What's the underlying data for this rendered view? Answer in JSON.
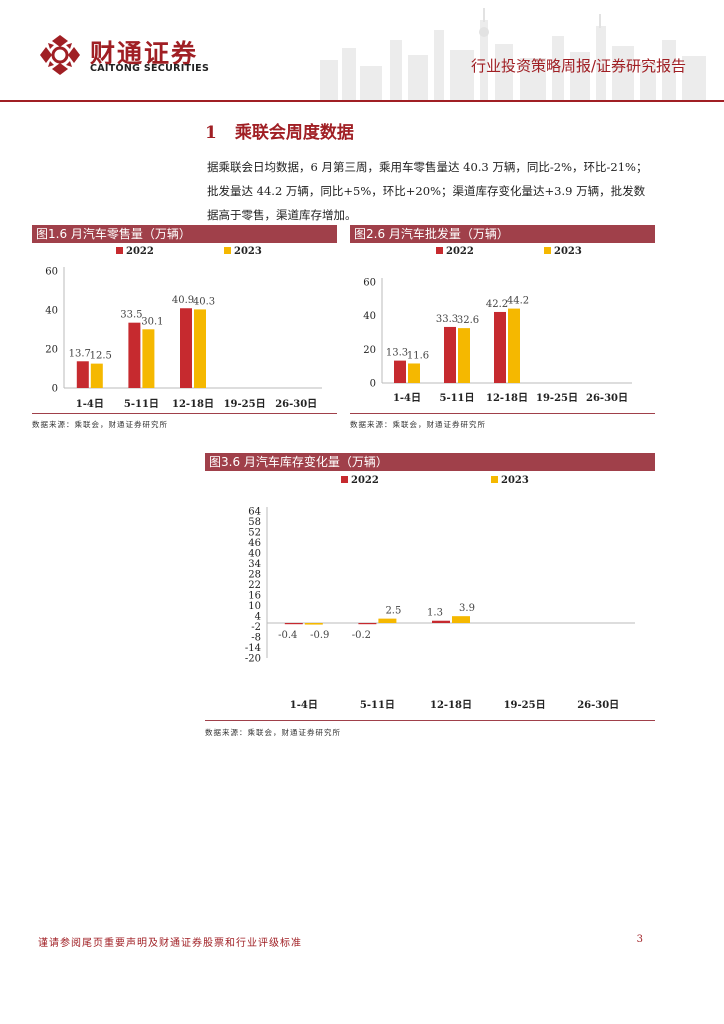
{
  "header": {
    "brand_cn": "财通证券",
    "brand_en": "CAITONG SECURITIES",
    "report_type": "行业投资策略周报/证券研究报告"
  },
  "section": {
    "number": "1",
    "title": "乘联会周度数据"
  },
  "paragraph": {
    "line1": "据乘联会日均数据，6 月第三周，乘用车零售量达 40.3 万辆，同比-2%，环比-21%；",
    "line2": "批发量达 44.2 万辆，同比+5%，环比+20%；渠道库存变化量达+3.9 万辆，批发数",
    "line3": "据高于零售，渠道库存增加。"
  },
  "colors": {
    "series_2022": "#c62a2f",
    "series_2023": "#f5b800",
    "accent": "#a01f24",
    "bar_header": "#a0404a"
  },
  "chart_data": [
    {
      "type": "bar",
      "title": "图1.6 月汽车零售量（万辆）",
      "categories": [
        "1-4日",
        "5-11日",
        "12-18日",
        "19-25日",
        "26-30日"
      ],
      "series": [
        {
          "name": "2022",
          "values": [
            13.7,
            33.5,
            40.9,
            null,
            null
          ]
        },
        {
          "name": "2023",
          "values": [
            12.5,
            30.1,
            40.3,
            null,
            null
          ]
        }
      ],
      "yticks": [
        0,
        20,
        40,
        60
      ],
      "ylim": [
        0,
        60
      ],
      "legend": "top",
      "grid": false,
      "source": "数据来源：乘联会，财通证券研究所"
    },
    {
      "type": "bar",
      "title": "图2.6 月汽车批发量（万辆）",
      "categories": [
        "1-4日",
        "5-11日",
        "12-18日",
        "19-25日",
        "26-30日"
      ],
      "series": [
        {
          "name": "2022",
          "values": [
            13.3,
            33.3,
            42.2,
            null,
            null
          ]
        },
        {
          "name": "2023",
          "values": [
            11.6,
            32.6,
            44.2,
            null,
            null
          ]
        }
      ],
      "yticks": [
        0,
        20,
        40,
        60
      ],
      "ylim": [
        0,
        60
      ],
      "legend": "top",
      "grid": false,
      "source": "数据来源：乘联会，财通证券研究所"
    },
    {
      "type": "bar",
      "title": "图3.6 月汽车库存变化量（万辆）",
      "categories": [
        "1-4日",
        "5-11日",
        "12-18日",
        "19-25日",
        "26-30日"
      ],
      "series": [
        {
          "name": "2022",
          "values": [
            -0.4,
            -0.2,
            1.3,
            null,
            null
          ]
        },
        {
          "name": "2023",
          "values": [
            -0.9,
            2.5,
            3.9,
            null,
            null
          ]
        }
      ],
      "yticks": [
        -20,
        -14,
        -8,
        -2,
        4,
        10,
        16,
        22,
        28,
        34,
        40,
        46,
        52,
        58,
        64
      ],
      "ylim": [
        -20,
        64
      ],
      "legend": "top",
      "grid": false,
      "source": "数据来源：乘联会，财通证券研究所"
    }
  ],
  "footer": {
    "disclaimer": "谨请参阅尾页重要声明及财通证券股票和行业评级标准",
    "page": "3"
  }
}
